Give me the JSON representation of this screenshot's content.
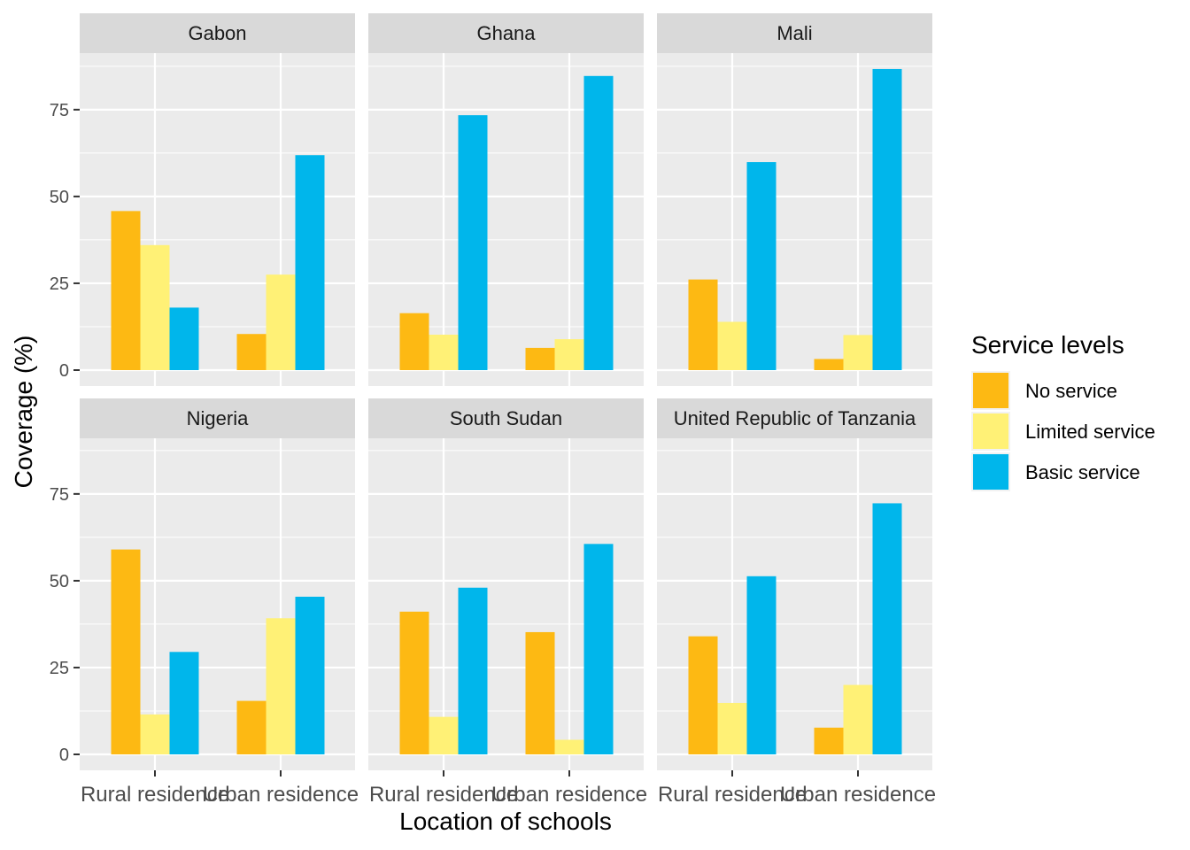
{
  "chart_data": {
    "type": "bar",
    "facet_by": "country",
    "xlabel": "Location of schools",
    "ylabel": "Coverage (%)",
    "ylim": [
      0,
      93
    ],
    "yticks": [
      0,
      25,
      50,
      75
    ],
    "categories": [
      "Rural residence",
      "Urban residence"
    ],
    "legend": {
      "title": "Service levels",
      "placement": "right",
      "entries": [
        "No service",
        "Limited service",
        "Basic service"
      ]
    },
    "colors": {
      "No service": "#FDB913",
      "Limited service": "#FFF176",
      "Basic service": "#00B6EB",
      "panel_bg": "#EBEBEB",
      "strip_bg": "#D9D9D9",
      "grid": "#FFFFFF"
    },
    "grid": true,
    "facets": [
      {
        "title": "Gabon",
        "series": [
          {
            "name": "No service",
            "values": [
              45.8,
              10.4
            ]
          },
          {
            "name": "Limited service",
            "values": [
              36.0,
              27.5
            ]
          },
          {
            "name": "Basic service",
            "values": [
              18.0,
              61.9
            ]
          }
        ]
      },
      {
        "title": "Ghana",
        "series": [
          {
            "name": "No service",
            "values": [
              16.4,
              6.4
            ]
          },
          {
            "name": "Limited service",
            "values": [
              10.2,
              8.9
            ]
          },
          {
            "name": "Basic service",
            "values": [
              73.4,
              84.7
            ]
          }
        ]
      },
      {
        "title": "Mali",
        "series": [
          {
            "name": "No service",
            "values": [
              26.1,
              3.2
            ]
          },
          {
            "name": "Limited service",
            "values": [
              13.9,
              10.1
            ]
          },
          {
            "name": "Basic service",
            "values": [
              59.9,
              86.7
            ]
          }
        ]
      },
      {
        "title": "Nigeria",
        "series": [
          {
            "name": "No service",
            "values": [
              59.0,
              15.4
            ]
          },
          {
            "name": "Limited service",
            "values": [
              11.5,
              39.2
            ]
          },
          {
            "name": "Basic service",
            "values": [
              29.5,
              45.4
            ]
          }
        ]
      },
      {
        "title": "South Sudan",
        "series": [
          {
            "name": "No service",
            "values": [
              41.1,
              35.2
            ]
          },
          {
            "name": "Limited service",
            "values": [
              10.8,
              4.2
            ]
          },
          {
            "name": "Basic service",
            "values": [
              48.0,
              60.6
            ]
          }
        ]
      },
      {
        "title": "United Republic of Tanzania",
        "series": [
          {
            "name": "No service",
            "values": [
              34.0,
              7.7
            ]
          },
          {
            "name": "Limited service",
            "values": [
              14.8,
              20.0
            ]
          },
          {
            "name": "Basic service",
            "values": [
              51.3,
              72.3
            ]
          }
        ]
      }
    ]
  }
}
